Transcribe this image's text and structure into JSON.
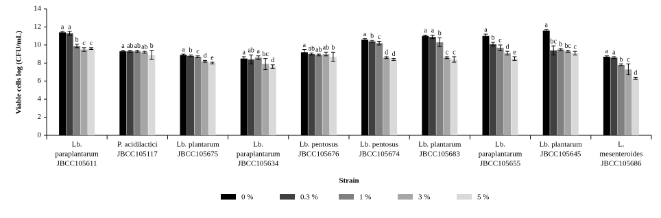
{
  "chart_data": {
    "type": "bar",
    "y_label": "Viable cells log (CFU/mL)",
    "x_label": "Strain",
    "categories": [
      [
        "Lb.",
        "paraplantarum",
        "JBCC105611"
      ],
      [
        "P. acidilactici",
        "JBCC105117"
      ],
      [
        "Lb. plantarum",
        "JBCC105675"
      ],
      [
        "Lb.",
        "paraplantarum",
        "JBCC105634"
      ],
      [
        "Lb. pentosus",
        "JBCC105676"
      ],
      [
        "Lb. pentosus",
        "JBCC105674"
      ],
      [
        "Lb. plantarum",
        "JBCC105683"
      ],
      [
        "Lb.",
        "paraplantarum",
        "JBCC105655"
      ],
      [
        "Lb. plantarum",
        "JBCC105645"
      ],
      [
        "L.",
        "mesenteroides",
        "JBCC105686"
      ]
    ],
    "series": [
      {
        "name": "0 %",
        "color": "#000000",
        "values": [
          11.4,
          9.3,
          8.9,
          8.5,
          9.2,
          10.6,
          11.0,
          11.0,
          11.6,
          8.7
        ],
        "errors": [
          0.1,
          0.1,
          0.1,
          0.2,
          0.3,
          0.1,
          0.1,
          0.2,
          0.1,
          0.1
        ],
        "letters": [
          "a",
          "a",
          "a",
          "a",
          "a",
          "a",
          "a",
          "a",
          "a",
          "a"
        ]
      },
      {
        "name": "0.3 %",
        "color": "#404040",
        "values": [
          11.3,
          9.3,
          8.8,
          8.4,
          9.0,
          10.4,
          10.9,
          10.1,
          9.4,
          8.6
        ],
        "errors": [
          0.2,
          0.1,
          0.1,
          0.5,
          0.1,
          0.1,
          0.2,
          0.2,
          0.5,
          0.1
        ],
        "letters": [
          "a",
          "ab",
          "b",
          "ab",
          "ab",
          "b",
          "a",
          "b",
          "bc",
          "a"
        ]
      },
      {
        "name": "1 %",
        "color": "#808080",
        "values": [
          9.9,
          9.3,
          8.7,
          8.6,
          8.9,
          10.2,
          10.3,
          9.7,
          9.5,
          7.8
        ],
        "errors": [
          0.2,
          0.1,
          0.1,
          0.2,
          0.1,
          0.2,
          0.5,
          0.3,
          0.1,
          0.1
        ],
        "letters": [
          "b",
          "ab",
          "c",
          "a",
          "ab",
          "c",
          "b",
          "c",
          "b",
          "b"
        ]
      },
      {
        "name": "3 %",
        "color": "#a6a6a6",
        "values": [
          9.5,
          9.2,
          8.2,
          7.9,
          9.0,
          8.6,
          8.6,
          9.1,
          9.3,
          7.3
        ],
        "errors": [
          0.2,
          0.1,
          0.1,
          0.6,
          0.2,
          0.1,
          0.1,
          0.2,
          0.1,
          0.6
        ],
        "letters": [
          "c",
          "ab",
          "d",
          "bc",
          "ab",
          "d",
          "c",
          "d",
          "bc",
          "c"
        ]
      },
      {
        "name": "5 %",
        "color": "#d9d9d9",
        "values": [
          9.6,
          8.9,
          8.0,
          7.6,
          8.7,
          8.4,
          8.4,
          8.5,
          9.1,
          6.3
        ],
        "errors": [
          0.1,
          0.5,
          0.1,
          0.2,
          0.5,
          0.1,
          0.3,
          0.2,
          0.2,
          0.1
        ],
        "letters": [
          "c",
          "b",
          "e",
          "d",
          "b",
          "d",
          "c",
          "e",
          "c",
          "d"
        ]
      }
    ],
    "ylim": [
      0,
      14
    ],
    "yticks": [
      0,
      2,
      4,
      6,
      8,
      10,
      12,
      14
    ]
  }
}
